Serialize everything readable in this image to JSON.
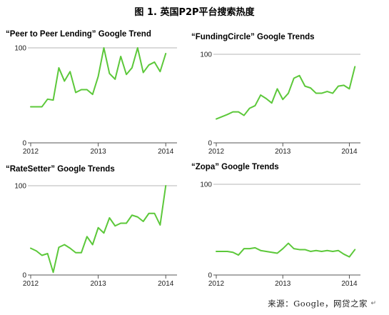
{
  "figure": {
    "title": "图 1.  英国P2P平台搜索热度",
    "source": "来源：Google，网贷之家",
    "return_mark": "↵"
  },
  "colors": {
    "line": "#5cc83a",
    "axis": "#555555",
    "grid": "#b5b5b5"
  },
  "chart_data": [
    {
      "type": "line",
      "title": "“Peer to Peer Lending” Google Trend",
      "x_ticks": [
        "2012",
        "2013",
        "2014"
      ],
      "y_ticks": [
        0,
        100
      ],
      "ylim": [
        0,
        100
      ],
      "xlim": [
        "2012-01",
        "2014-03"
      ],
      "grid": "top line at 100",
      "series": [
        {
          "x": [
            "2012-01",
            "2012-03",
            "2012-04",
            "2012-05",
            "2012-06",
            "2012-07",
            "2012-08",
            "2012-09",
            "2012-10",
            "2012-11",
            "2012-12",
            "2013-01",
            "2013-02",
            "2013-03",
            "2013-04",
            "2013-05",
            "2013-06",
            "2013-07",
            "2013-08",
            "2013-09",
            "2013-10",
            "2013-11",
            "2013-12",
            "2014-01",
            "2014-02"
          ],
          "values": [
            38,
            38,
            46,
            45,
            79,
            65,
            75,
            53,
            56,
            56,
            51,
            70,
            100,
            73,
            67,
            91,
            72,
            79,
            100,
            74,
            82,
            85,
            75,
            94,
            null
          ]
        }
      ]
    },
    {
      "type": "line",
      "title": "“FundingCircle” Google Trends",
      "x_ticks": [
        "2012",
        "2013",
        "2014"
      ],
      "y_ticks": [
        0,
        100
      ],
      "ylim": [
        0,
        100
      ],
      "xlim": [
        "2012-01",
        "2014-03"
      ],
      "grid": "top line at 100",
      "series": [
        {
          "x": [
            "2012-01",
            "2012-03",
            "2012-04",
            "2012-05",
            "2012-06",
            "2012-07",
            "2012-08",
            "2012-09",
            "2012-10",
            "2012-11",
            "2012-12",
            "2013-01",
            "2013-02",
            "2013-03",
            "2013-04",
            "2013-05",
            "2013-06",
            "2013-07",
            "2013-08",
            "2013-09",
            "2013-10",
            "2013-11",
            "2013-12",
            "2014-01",
            "2014-02"
          ],
          "values": [
            27,
            32,
            35,
            35,
            31,
            39,
            42,
            54,
            50,
            45,
            61,
            49,
            56,
            73,
            76,
            64,
            62,
            56,
            56,
            58,
            56,
            64,
            65,
            61,
            86
          ]
        }
      ]
    },
    {
      "type": "line",
      "title": "“RateSetter” Google Trends",
      "x_ticks": [
        "2012",
        "2013",
        "2014"
      ],
      "y_ticks": [
        0,
        100
      ],
      "ylim": [
        0,
        100
      ],
      "xlim": [
        "2012-01",
        "2014-03"
      ],
      "grid": "top line at 100",
      "series": [
        {
          "x": [
            "2012-01",
            "2012-02",
            "2012-03",
            "2012-04",
            "2012-05",
            "2012-06",
            "2012-07",
            "2012-08",
            "2012-09",
            "2012-10",
            "2012-11",
            "2012-12",
            "2013-01",
            "2013-02",
            "2013-03",
            "2013-04",
            "2013-05",
            "2013-06",
            "2013-07",
            "2013-08",
            "2013-09",
            "2013-10",
            "2013-11",
            "2013-12",
            "2014-01",
            "2014-02"
          ],
          "values": [
            30,
            27,
            22,
            24,
            3,
            31,
            34,
            30,
            25,
            25,
            43,
            34,
            53,
            47,
            64,
            55,
            58,
            58,
            67,
            65,
            60,
            69,
            69,
            56,
            100,
            null
          ]
        }
      ]
    },
    {
      "type": "line",
      "title": "“Zopa” Google Trends",
      "x_ticks": [
        "2012",
        "2013",
        "2014"
      ],
      "y_ticks": [
        0,
        100
      ],
      "ylim": [
        0,
        100
      ],
      "xlim": [
        "2012-01",
        "2014-03"
      ],
      "grid": "top line at 100",
      "series": [
        {
          "x": [
            "2012-01",
            "2012-02",
            "2012-03",
            "2012-04",
            "2012-05",
            "2012-06",
            "2012-07",
            "2012-08",
            "2012-09",
            "2012-10",
            "2012-11",
            "2012-12",
            "2013-01",
            "2013-02",
            "2013-03",
            "2013-04",
            "2013-05",
            "2013-06",
            "2013-07",
            "2013-08",
            "2013-09",
            "2013-10",
            "2013-11",
            "2013-12",
            "2014-01",
            "2014-02"
          ],
          "values": [
            26,
            26,
            26,
            25,
            22,
            29,
            29,
            30,
            27,
            26,
            25,
            24,
            29,
            35,
            29,
            28,
            28,
            26,
            27,
            26,
            27,
            26,
            27,
            23,
            20,
            28
          ]
        }
      ]
    }
  ]
}
